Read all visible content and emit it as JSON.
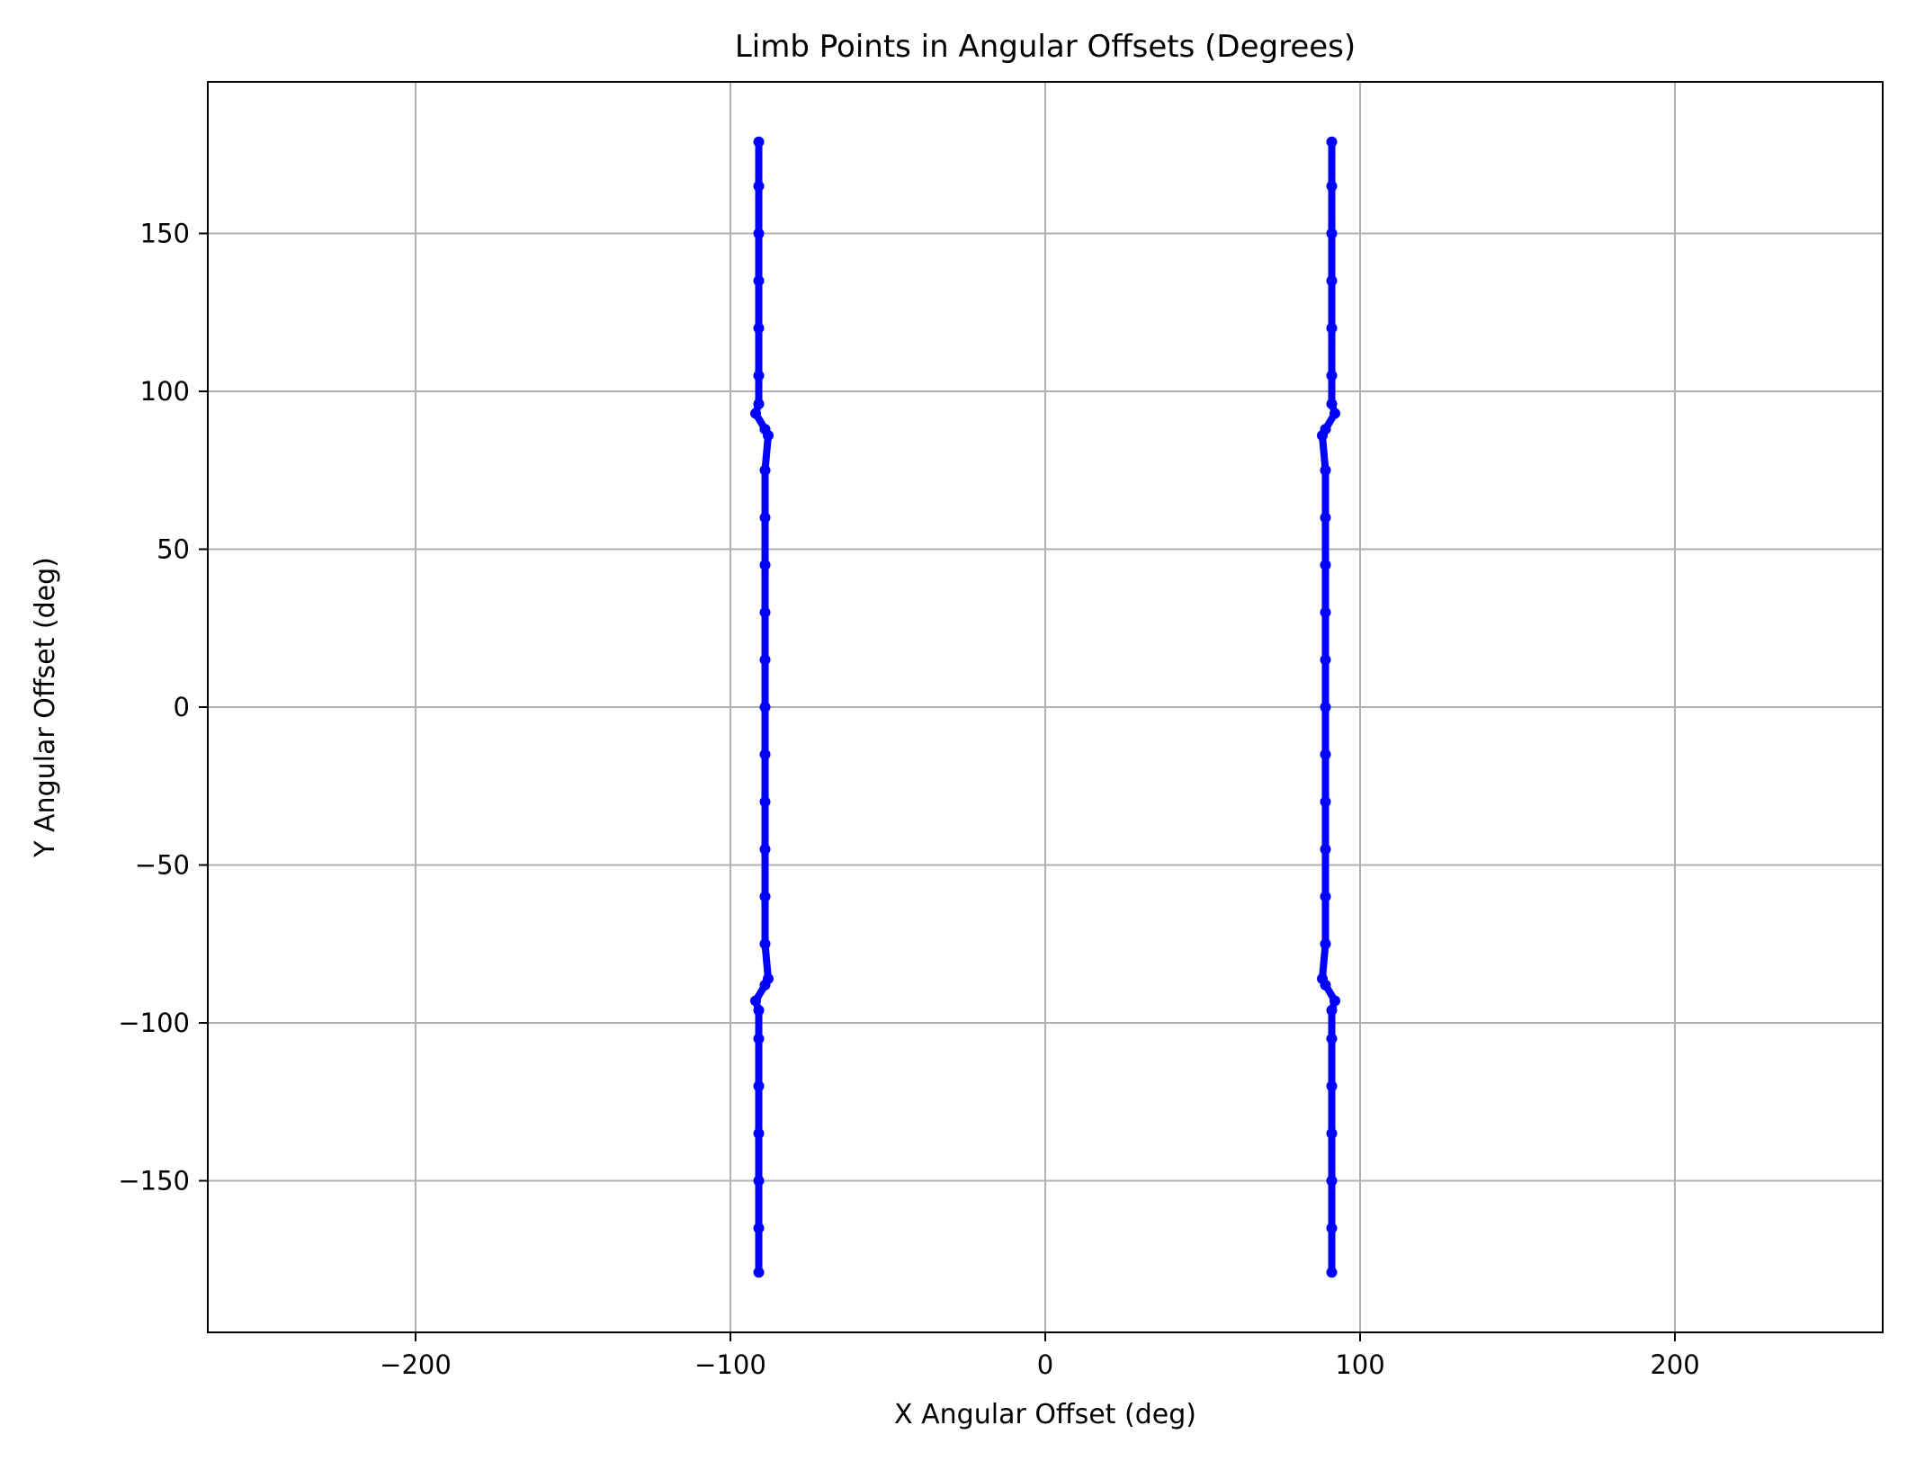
{
  "chart_data": {
    "type": "scatter",
    "title": "Limb Points in Angular Offsets (Degrees)",
    "xlabel": "X Angular Offset (deg)",
    "ylabel": "Y Angular Offset (deg)",
    "xlim": [
      -266,
      266
    ],
    "ylim": [
      -198,
      198
    ],
    "grid": true,
    "xticks": [
      {
        "value": -200,
        "label": "−200"
      },
      {
        "value": -100,
        "label": "−100"
      },
      {
        "value": 0,
        "label": "0"
      },
      {
        "value": 100,
        "label": "100"
      },
      {
        "value": 200,
        "label": "200"
      }
    ],
    "yticks": [
      {
        "value": 150,
        "label": "150"
      },
      {
        "value": 100,
        "label": "100"
      },
      {
        "value": 50,
        "label": "50"
      },
      {
        "value": 0,
        "label": "0"
      },
      {
        "value": -50,
        "label": "−50"
      },
      {
        "value": -100,
        "label": "−100"
      },
      {
        "value": -150,
        "label": "−150"
      }
    ],
    "marker_color": "#0000ff",
    "series": [
      {
        "points": [
          [
            -91,
            179
          ],
          [
            -91,
            165
          ],
          [
            -91,
            150
          ],
          [
            -91,
            135
          ],
          [
            -91,
            120
          ],
          [
            -91,
            105
          ],
          [
            -91,
            96
          ],
          [
            -92,
            93
          ],
          [
            -89,
            88
          ],
          [
            -88,
            86
          ],
          [
            -89,
            75
          ],
          [
            -89,
            60
          ],
          [
            -89,
            45
          ],
          [
            -89,
            30
          ],
          [
            -89,
            15
          ],
          [
            -89,
            0
          ],
          [
            -89,
            -15
          ],
          [
            -89,
            -30
          ],
          [
            -89,
            -45
          ],
          [
            -89,
            -60
          ],
          [
            -89,
            -75
          ],
          [
            -88,
            -86
          ],
          [
            -89,
            -88
          ],
          [
            -92,
            -93
          ],
          [
            -91,
            -96
          ],
          [
            -91,
            -105
          ],
          [
            -91,
            -120
          ],
          [
            -91,
            -135
          ],
          [
            -91,
            -150
          ],
          [
            -91,
            -165
          ],
          [
            -91,
            -179
          ]
        ]
      },
      {
        "points": [
          [
            91,
            179
          ],
          [
            91,
            165
          ],
          [
            91,
            150
          ],
          [
            91,
            135
          ],
          [
            91,
            120
          ],
          [
            91,
            105
          ],
          [
            91,
            96
          ],
          [
            92,
            93
          ],
          [
            89,
            88
          ],
          [
            88,
            86
          ],
          [
            89,
            75
          ],
          [
            89,
            60
          ],
          [
            89,
            45
          ],
          [
            89,
            30
          ],
          [
            89,
            15
          ],
          [
            89,
            0
          ],
          [
            89,
            -15
          ],
          [
            89,
            -30
          ],
          [
            89,
            -45
          ],
          [
            89,
            -60
          ],
          [
            89,
            -75
          ],
          [
            88,
            -86
          ],
          [
            89,
            -88
          ],
          [
            92,
            -93
          ],
          [
            91,
            -96
          ],
          [
            91,
            -105
          ],
          [
            91,
            -120
          ],
          [
            91,
            -135
          ],
          [
            91,
            -150
          ],
          [
            91,
            -165
          ],
          [
            91,
            -179
          ]
        ]
      }
    ]
  }
}
